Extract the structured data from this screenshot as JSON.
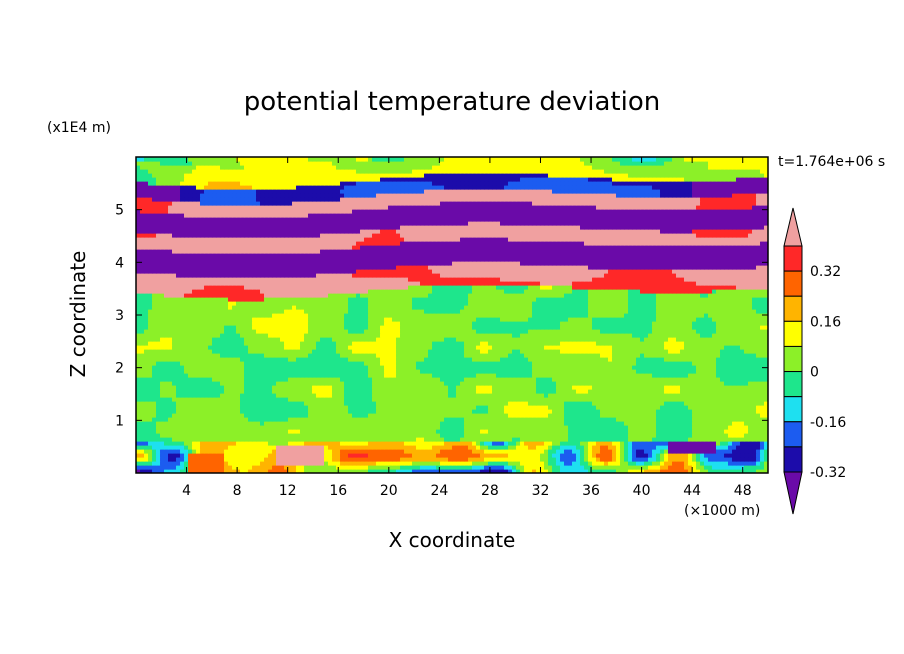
{
  "chart_data": {
    "type": "heatmap",
    "title": "potential temperature deviation",
    "xlabel": "X coordinate",
    "ylabel": "Z coordinate",
    "x_unit_label": "(×1000 m)",
    "y_unit_label": "(x1E4 m)",
    "time_label": "t=1.764e+06 s",
    "xlim": [
      0,
      50
    ],
    "ylim": [
      0,
      6
    ],
    "x_ticks": [
      "4",
      "8",
      "12",
      "16",
      "20",
      "24",
      "28",
      "32",
      "36",
      "40",
      "44",
      "48"
    ],
    "y_ticks": [
      "1",
      "2",
      "3",
      "4",
      "5"
    ],
    "colorbar": {
      "tick_labels": [
        "0.32",
        "0.16",
        "0",
        "-0.16",
        "-0.32"
      ],
      "levels": [
        -0.4,
        -0.32,
        -0.24,
        -0.16,
        -0.08,
        0,
        0.08,
        0.16,
        0.24,
        0.32,
        0.4
      ],
      "extend": "both",
      "colors": [
        "#6a0aa8",
        "#1c0caa",
        "#1c5cf0",
        "#1ee0f0",
        "#1ee68c",
        "#8cf028",
        "#ffff00",
        "#ffb400",
        "#ff6400",
        "#ff2828",
        "#f0a0a0"
      ]
    },
    "layers": [
      {
        "z": [
          0.0,
          0.6
        ],
        "description_values": "mixed -0.16 to 0.32",
        "mean": -0.05
      },
      {
        "z": [
          0.6,
          3.5
        ],
        "mean": 0.02
      },
      {
        "z": [
          3.5,
          3.9
        ],
        "mean": 0.45
      },
      {
        "z": [
          3.9,
          4.35
        ],
        "mean": -0.45
      },
      {
        "z": [
          4.35,
          4.65
        ],
        "mean": 0.45
      },
      {
        "z": [
          4.65,
          5.05
        ],
        "mean": -0.45
      },
      {
        "z": [
          5.05,
          5.3
        ],
        "mean": 0.45
      },
      {
        "z": [
          5.3,
          5.6
        ],
        "mean": -0.3
      },
      {
        "z": [
          5.6,
          6.0
        ],
        "mean": 0.1
      }
    ]
  },
  "colors": {
    "background": "#ffffff",
    "frame": "#000000"
  }
}
